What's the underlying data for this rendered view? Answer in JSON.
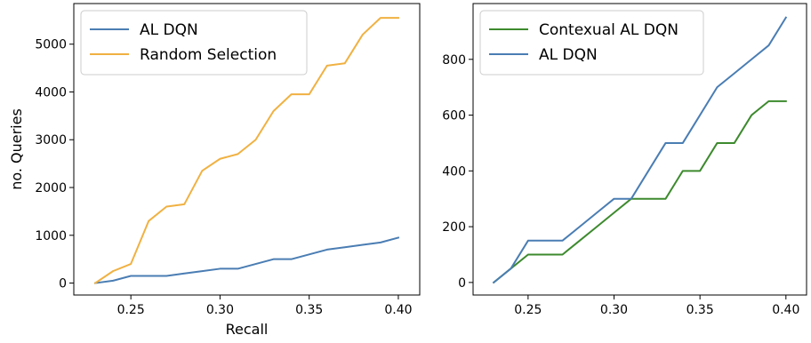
{
  "colors": {
    "al_dqn": "#4a7db3",
    "random_selection": "#f0b142",
    "contextual_al_dqn": "#3d8a2e"
  },
  "chart_data": [
    {
      "type": "line",
      "xlabel": "Recall",
      "ylabel": "no. Queries",
      "xlim": [
        0.218,
        0.412
      ],
      "ylim": [
        -250,
        5850
      ],
      "xticks": [
        0.25,
        0.3,
        0.35,
        0.4
      ],
      "xtick_labels": [
        "0.25",
        "0.30",
        "0.35",
        "0.40"
      ],
      "yticks": [
        0,
        1000,
        2000,
        3000,
        4000,
        5000
      ],
      "ytick_labels": [
        "0",
        "1000",
        "2000",
        "3000",
        "4000",
        "5000"
      ],
      "grid": false,
      "legend_position": "top-left",
      "series": [
        {
          "name": "AL DQN",
          "color_key": "al_dqn",
          "x": [
            0.23,
            0.24,
            0.25,
            0.26,
            0.27,
            0.28,
            0.29,
            0.3,
            0.31,
            0.32,
            0.33,
            0.34,
            0.35,
            0.36,
            0.37,
            0.38,
            0.39,
            0.4
          ],
          "y": [
            0,
            50,
            150,
            150,
            150,
            200,
            250,
            300,
            300,
            400,
            500,
            500,
            600,
            700,
            750,
            800,
            850,
            950
          ]
        },
        {
          "name": "Random Selection",
          "color_key": "random_selection",
          "x": [
            0.23,
            0.24,
            0.25,
            0.26,
            0.27,
            0.28,
            0.29,
            0.3,
            0.31,
            0.32,
            0.33,
            0.34,
            0.35,
            0.36,
            0.37,
            0.38,
            0.39,
            0.4
          ],
          "y": [
            0,
            250,
            400,
            1300,
            1600,
            1650,
            2350,
            2600,
            2700,
            3000,
            3600,
            3950,
            3950,
            4550,
            4600,
            5200,
            5550,
            5550
          ]
        }
      ]
    },
    {
      "type": "line",
      "xlabel": "",
      "ylabel": "",
      "xlim": [
        0.218,
        0.412
      ],
      "ylim": [
        -45,
        1000
      ],
      "xticks": [
        0.25,
        0.3,
        0.35,
        0.4
      ],
      "xtick_labels": [
        "0.25",
        "0.30",
        "0.35",
        "0.40"
      ],
      "yticks": [
        0,
        200,
        400,
        600,
        800
      ],
      "ytick_labels": [
        "0",
        "200",
        "400",
        "600",
        "800"
      ],
      "grid": false,
      "legend_position": "top-left",
      "series": [
        {
          "name": "Contexual AL DQN",
          "color_key": "contextual_al_dqn",
          "x": [
            0.23,
            0.24,
            0.25,
            0.26,
            0.27,
            0.28,
            0.29,
            0.3,
            0.31,
            0.32,
            0.33,
            0.34,
            0.35,
            0.36,
            0.37,
            0.38,
            0.39,
            0.4
          ],
          "y": [
            0,
            50,
            100,
            100,
            100,
            150,
            200,
            250,
            300,
            300,
            300,
            400,
            400,
            500,
            500,
            600,
            650,
            650
          ]
        },
        {
          "name": "AL DQN",
          "color_key": "al_dqn",
          "x": [
            0.23,
            0.24,
            0.25,
            0.26,
            0.27,
            0.28,
            0.29,
            0.3,
            0.31,
            0.32,
            0.33,
            0.34,
            0.35,
            0.36,
            0.37,
            0.38,
            0.39,
            0.4
          ],
          "y": [
            0,
            50,
            150,
            150,
            150,
            200,
            250,
            300,
            300,
            400,
            500,
            500,
            600,
            700,
            750,
            800,
            850,
            950
          ]
        }
      ]
    }
  ]
}
